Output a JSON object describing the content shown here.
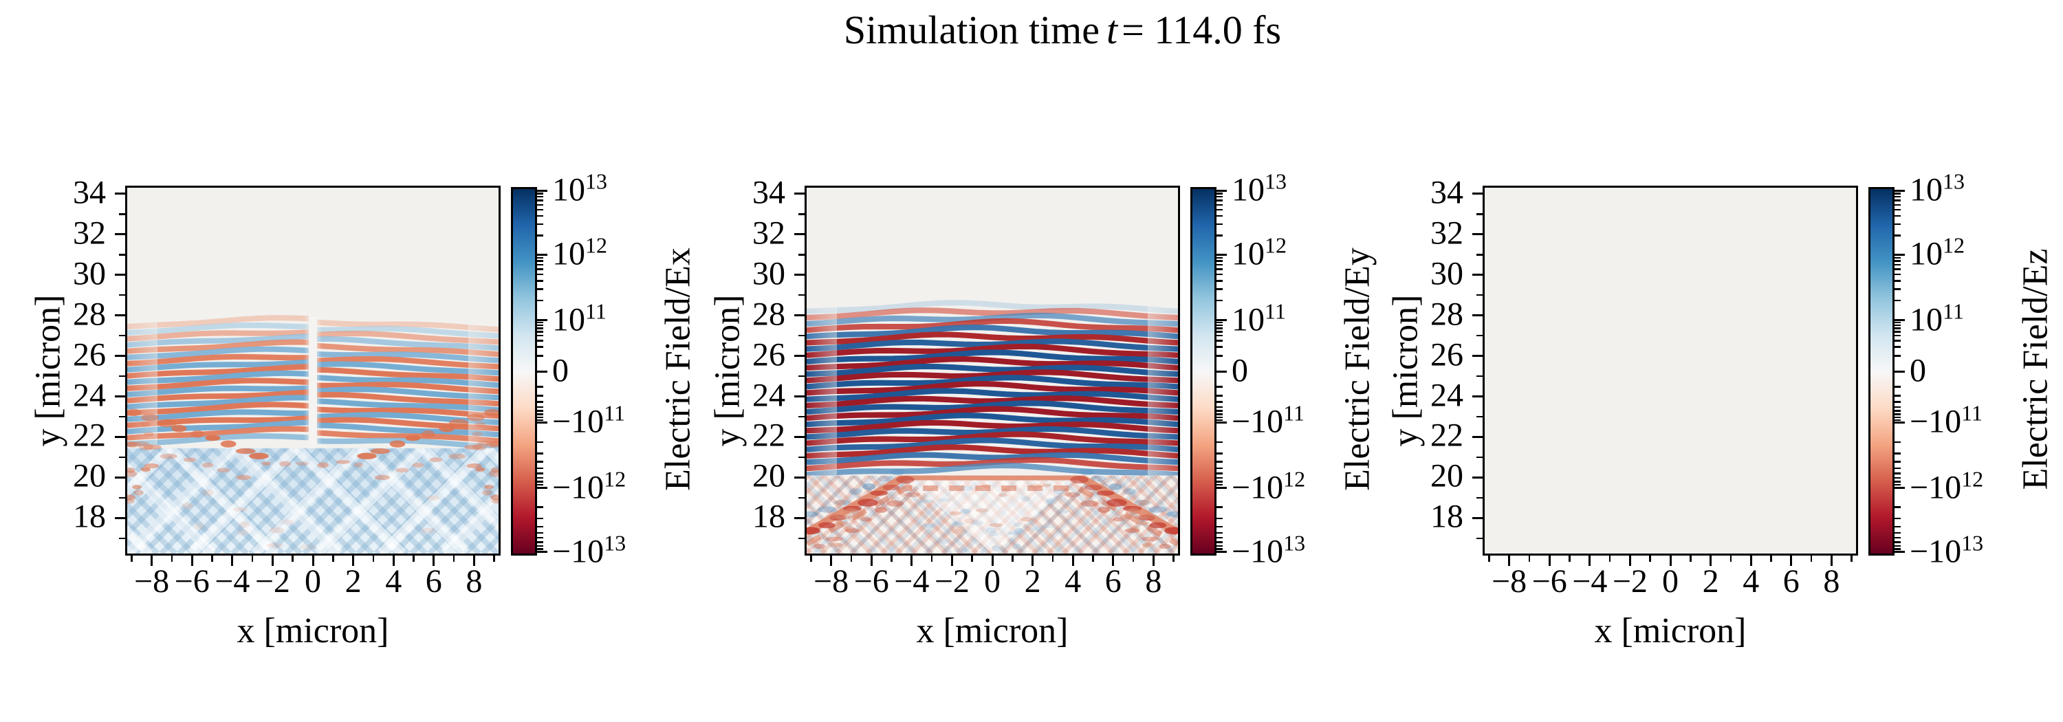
{
  "figure": {
    "title_prefix": "Simulation time",
    "title_var": "t",
    "title_suffix": "= 114.0 fs"
  },
  "axes_common": {
    "xlabel": "x [micron]",
    "ylabel": "y [micron]",
    "x_major_ticks": [
      -8,
      -6,
      -4,
      -2,
      0,
      2,
      4,
      6,
      8
    ],
    "x_minor_ticks": [
      -9,
      -7,
      -5,
      -3,
      -1,
      1,
      3,
      5,
      7,
      9
    ],
    "y_major_ticks": [
      34,
      32,
      30,
      28,
      26,
      24,
      22,
      20,
      18
    ],
    "y_minor_ticks": [
      33,
      31,
      29,
      27,
      25,
      23,
      21,
      19,
      17
    ],
    "x_range": [
      -9.2,
      9.2
    ],
    "y_range": [
      16.25,
      34.3
    ]
  },
  "colorbar": {
    "major_ticks": [
      {
        "pos": 0.4,
        "label": "10^13"
      },
      {
        "pos": 18.0,
        "label": "10^12"
      },
      {
        "pos": 36.0,
        "label": "10^11"
      },
      {
        "pos": 50.0,
        "label": "0"
      },
      {
        "pos": 64.0,
        "label": "-10^11"
      },
      {
        "pos": 82.0,
        "label": "-10^12"
      },
      {
        "pos": 99.6,
        "label": "-10^13"
      }
    ],
    "minor_decade_pairs": [
      [
        0.4,
        18.0
      ],
      [
        18.0,
        36.0
      ],
      [
        36.0,
        50.0
      ]
    ],
    "gradient_stops": [
      "#053061",
      "#2166ac",
      "#4393c3",
      "#92c5de",
      "#d1e5f0",
      "#f7f7f7",
      "#fddbc7",
      "#f4a582",
      "#d6604d",
      "#b2182b",
      "#67001f"
    ]
  },
  "palette": {
    "axes_bg": "#f2f1ee",
    "spine": "#000000",
    "ex_red": [
      "#f7d5c2",
      "#e89274",
      "#d96747"
    ],
    "ex_blue": [
      "#d8e8f2",
      "#94c0dd",
      "#5f9dc9"
    ],
    "ey_red": [
      "#f2b9a0",
      "#cc4336",
      "#9d1b27"
    ],
    "ey_blue": [
      "#bdd8ea",
      "#4f89bd",
      "#1f5795"
    ]
  },
  "panels": [
    {
      "id": "ex",
      "cbar_label": "Electric Field/Ex",
      "pattern": "ex",
      "stripes": {
        "y_start": 27.45,
        "half_period": 0.305,
        "count": 20,
        "first": "red",
        "dome": 11,
        "wiggle": 2.5,
        "phase_slip": true,
        "amps": [
          0.3,
          0.38,
          0.46,
          0.54,
          0.62,
          0.68,
          0.73,
          0.77,
          0.8,
          0.8,
          0.8,
          0.8,
          0.8,
          0.8,
          0.8,
          0.8,
          0.8,
          0.78,
          0.72,
          0.62
        ]
      },
      "lower_zone": {
        "y_top": 21.45,
        "bg_top": "#cfe2f0",
        "bg_bottom": "#e8f2f8",
        "hatch": [
          {
            "slope": 1,
            "spacing": 26,
            "width": 8,
            "color": "rgba(118,166,204,0.33)"
          },
          {
            "slope": -1,
            "spacing": 26,
            "width": 8,
            "color": "rgba(118,166,204,0.33)"
          },
          {
            "slope": 1,
            "spacing": 92,
            "width": 14,
            "color": "rgba(255,255,255,0.55)"
          },
          {
            "slope": -1,
            "spacing": 92,
            "width": 14,
            "color": "rgba(255,255,255,0.55)"
          }
        ]
      },
      "blobs": [
        {
          "type": "chain",
          "from": [
            -8.9,
            23.2
          ],
          "to": [
            -2.6,
            21.1
          ],
          "n": 9,
          "rx": 0.42,
          "ry": 0.17,
          "color": "#dd7450",
          "opacity": 0.75,
          "seed": 11,
          "mirror": true
        },
        {
          "type": "chain",
          "from": [
            -8.9,
            21.7
          ],
          "to": [
            -3.4,
            20.0
          ],
          "n": 7,
          "rx": 0.36,
          "ry": 0.14,
          "color": "#e2886a",
          "opacity": 0.5,
          "seed": 12,
          "mirror": true
        },
        {
          "type": "scatter",
          "x": [
            -9.2,
            -7.6
          ],
          "y": [
            18.8,
            23.2
          ],
          "n": 14,
          "rx": 0.3,
          "ry": 0.13,
          "color": "#dd7450",
          "opacity": 0.45,
          "seed": 13,
          "mirror": true
        },
        {
          "type": "chain",
          "from": [
            -2.3,
            20.7
          ],
          "to": [
            2.3,
            20.7
          ],
          "n": 6,
          "rx": 0.3,
          "ry": 0.11,
          "color": "#e2886a",
          "opacity": 0.5,
          "seed": 14
        },
        {
          "type": "scatter",
          "x": [
            -6.5,
            6.5
          ],
          "y": [
            16.5,
            19.4
          ],
          "n": 12,
          "rx": 0.34,
          "ry": 0.14,
          "color": "#eba98d",
          "opacity": 0.22,
          "seed": 15
        }
      ]
    },
    {
      "id": "ey",
      "cbar_label": "Electric Field/Ey",
      "pattern": "ey",
      "stripes": {
        "y_start": 28.2,
        "half_period": 0.31,
        "count": 27,
        "first": "blue",
        "dome": 10,
        "wiggle": 3.5,
        "phase_slip": false,
        "amps": [
          0.15,
          0.4,
          0.5,
          0.62,
          0.72,
          0.82,
          0.9,
          0.96,
          1,
          1,
          1,
          1,
          1,
          1,
          1,
          1,
          1,
          1,
          1,
          0.97,
          0.94,
          0.9,
          0.86,
          0.8,
          0.72,
          0.62,
          0.52
        ]
      },
      "lower_zone": {
        "y_top": 20.1,
        "bg_top": "#f6f0ec",
        "bg_bottom": "#f7f3ef",
        "boundary": {
          "plateau_half_x": 4.3,
          "plateau_y": 20.05,
          "edge_x": 9.2,
          "edge_y": 17.3,
          "color": "#e0876a",
          "width": 11
        },
        "hatch": [
          {
            "slope": 1,
            "spacing": 22,
            "width": 6,
            "color": "rgba(196,86,62,0.20)"
          },
          {
            "slope": -1,
            "spacing": 22,
            "width": 6,
            "color": "rgba(196,86,62,0.20)"
          },
          {
            "slope": 1,
            "spacing": 27,
            "width": 6,
            "color": "rgba(104,148,190,0.18)"
          },
          {
            "slope": -1,
            "spacing": 27,
            "width": 6,
            "color": "rgba(104,148,190,0.18)"
          }
        ]
      },
      "blobs": [
        {
          "type": "chain",
          "from": [
            -4.3,
            19.9
          ],
          "to": [
            -8.9,
            17.3
          ],
          "n": 8,
          "rx": 0.44,
          "ry": 0.16,
          "color": "#c2392e",
          "opacity": 0.65,
          "seed": 21,
          "mirror": true
        },
        {
          "type": "chain",
          "from": [
            -4.0,
            19.2
          ],
          "to": [
            -8.5,
            16.6
          ],
          "n": 7,
          "rx": 0.38,
          "ry": 0.14,
          "color": "#cd5a43",
          "opacity": 0.45,
          "seed": 22,
          "mirror": true
        },
        {
          "type": "chain",
          "from": [
            -4.6,
            20.35
          ],
          "to": [
            -9.0,
            18.1
          ],
          "n": 7,
          "rx": 0.38,
          "ry": 0.14,
          "color": "#5b93c4",
          "opacity": 0.4,
          "seed": 23,
          "mirror": true
        },
        {
          "type": "scatter",
          "x": [
            -3.8,
            3.8
          ],
          "y": [
            16.1,
            19.6
          ],
          "n": 24,
          "rx": 0.26,
          "ry": 0.12,
          "color": "#9dc2dd",
          "opacity": 0.38,
          "seed": 24
        },
        {
          "type": "scatter",
          "x": [
            -3.5,
            3.5
          ],
          "y": [
            17.2,
            19.8
          ],
          "n": 12,
          "rx": 0.28,
          "ry": 0.11,
          "color": "#d98c70",
          "opacity": 0.32,
          "seed": 25
        },
        {
          "type": "scatter",
          "x": [
            -9.2,
            -6.6
          ],
          "y": [
            15.9,
            18.8
          ],
          "n": 14,
          "rx": 0.3,
          "ry": 0.13,
          "color": "#d98c70",
          "opacity": 0.38,
          "seed": 26,
          "mirror": true
        }
      ]
    },
    {
      "id": "ez",
      "cbar_label": "Electric Field/Ez",
      "pattern": "flat",
      "stripes": null,
      "lower_zone": null,
      "blobs": []
    }
  ],
  "chart_data": {
    "type": "heatmap",
    "title": "Simulation time t = 114.0 fs",
    "layout": "1x3 panels, each with its own symlog colorbar on the right",
    "panels": [
      {
        "field": "Ex",
        "colorbar_label": "Electric Field/Ex",
        "xlabel": "x [micron]",
        "ylabel": "y [micron]",
        "x_range_micron": [
          -9.2,
          9.2
        ],
        "y_range_micron": [
          16.25,
          34.3
        ],
        "x_ticks": [
          -8,
          -6,
          -4,
          -2,
          0,
          2,
          4,
          6,
          8
        ],
        "y_ticks": [
          18,
          20,
          22,
          24,
          26,
          28,
          30,
          32,
          34
        ],
        "colormap": "RdBu",
        "norm": "symlog",
        "clim": [
          -10000000000000.0,
          10000000000000.0
        ],
        "colorbar_ticks": [
          10000000000000.0,
          1000000000000.0,
          100000000000.0,
          0,
          -100000000000.0,
          -1000000000000.0,
          -10000000000000.0
        ],
        "content": {
          "upper_region": "zero field above y≈27.5 micron",
          "stripe_zone": {
            "y_from": 21.4,
            "y_to": 27.5,
            "wavelength_micron": 0.61,
            "orientation": "horizontal, dome-arched",
            "peak_amplitude": 3000000000000.0,
            "phase_slip_at_x": 0
          },
          "lower_zone": {
            "y_below": 21.4,
            "description": "V-shaped interference fan: weak positive (blue) crosshatch background with chains of negative (red) pockets along the fan edges"
          }
        }
      },
      {
        "field": "Ey",
        "colorbar_label": "Electric Field/Ey",
        "xlabel": "x [micron]",
        "ylabel": "y [micron]",
        "x_range_micron": [
          -9.2,
          9.2
        ],
        "y_range_micron": [
          16.25,
          34.3
        ],
        "x_ticks": [
          -8,
          -6,
          -4,
          -2,
          0,
          2,
          4,
          6,
          8
        ],
        "y_ticks": [
          18,
          20,
          22,
          24,
          26,
          28,
          30,
          32,
          34
        ],
        "colormap": "RdBu",
        "norm": "symlog",
        "clim": [
          -10000000000000.0,
          10000000000000.0
        ],
        "colorbar_ticks": [
          10000000000000.0,
          1000000000000.0,
          100000000000.0,
          0,
          -100000000000.0,
          -1000000000000.0,
          -10000000000000.0
        ],
        "content": {
          "upper_region": "zero field above y≈28 micron",
          "stripe_zone": {
            "y_from": 20.1,
            "y_to": 28.0,
            "wavelength_micron": 0.62,
            "orientation": "horizontal, dome-arched",
            "peak_amplitude": 10000000000000.0,
            "saturated_core": "|x|<5 micron"
          },
          "lower_zone": {
            "y_below": 20.1,
            "description": "pale V-shaped noise region with diagonal red/blue streak chains descending to the bottom corners"
          }
        }
      },
      {
        "field": "Ez",
        "colorbar_label": "Electric Field/Ez",
        "xlabel": "x [micron]",
        "ylabel": "y [micron]",
        "x_range_micron": [
          -9.2,
          9.2
        ],
        "y_range_micron": [
          16.25,
          34.3
        ],
        "x_ticks": [
          -8,
          -6,
          -4,
          -2,
          0,
          2,
          4,
          6,
          8
        ],
        "y_ticks": [
          18,
          20,
          22,
          24,
          26,
          28,
          30,
          32,
          34
        ],
        "colormap": "RdBu",
        "norm": "symlog",
        "clim": [
          -10000000000000.0,
          10000000000000.0
        ],
        "colorbar_ticks": [
          10000000000000.0,
          1000000000000.0,
          100000000000.0,
          0,
          -100000000000.0,
          -1000000000000.0,
          -10000000000000.0
        ],
        "content": {
          "uniform_value": 0,
          "description": "entire panel at zero field (uniform light gray)"
        }
      }
    ]
  }
}
